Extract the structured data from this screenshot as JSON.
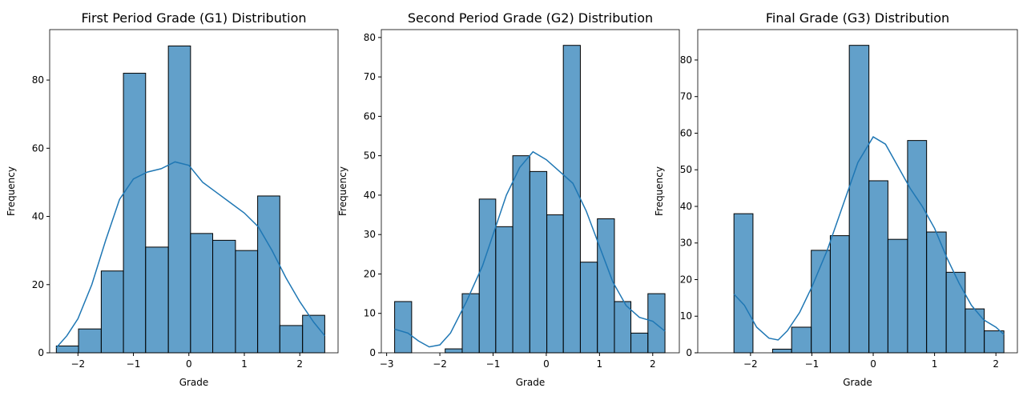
{
  "chart_data": [
    {
      "type": "histogram",
      "title": "First Period Grade (G1) Distribution",
      "x_label": "Grade",
      "y_label": "Frequency",
      "bins": [
        -2.39,
        -1.99,
        -1.58,
        -1.18,
        -0.78,
        -0.37,
        0.03,
        0.43,
        0.84,
        1.24,
        1.64,
        2.05,
        2.45
      ],
      "values": [
        2,
        7,
        24,
        82,
        31,
        90,
        35,
        33,
        30,
        46,
        8,
        11
      ],
      "color": "#1f77b4",
      "kde": {
        "x": [
          -2.39,
          -2.2,
          -2.0,
          -1.75,
          -1.5,
          -1.25,
          -1.0,
          -0.75,
          -0.5,
          -0.25,
          0,
          0.25,
          0.5,
          0.75,
          1.0,
          1.25,
          1.5,
          1.75,
          2.0,
          2.25,
          2.45
        ],
        "values": [
          1.5,
          5,
          10,
          20,
          33,
          45,
          51,
          53,
          54,
          56,
          55,
          50,
          47,
          44,
          41,
          37,
          30,
          22,
          15,
          9,
          5
        ]
      },
      "xlim": [
        -2.51,
        2.69
      ],
      "xticks": [
        {
          "value": -2,
          "label": "−2"
        },
        {
          "value": -1,
          "label": "−1"
        },
        0,
        1,
        2
      ],
      "ylim": [
        0,
        94.8
      ],
      "yticks": [
        0,
        20,
        40,
        60,
        80
      ]
    },
    {
      "type": "histogram",
      "title": "Second Period Grade (G2) Distribution",
      "x_label": "Grade",
      "y_label": "Frequency",
      "bins": [
        -2.85,
        -2.53,
        -2.22,
        -1.9,
        -1.58,
        -1.26,
        -0.95,
        -0.63,
        -0.31,
        0.01,
        0.32,
        0.64,
        0.96,
        1.28,
        1.59,
        1.91,
        2.23
      ],
      "values": [
        13,
        0,
        0,
        1,
        15,
        39,
        32,
        50,
        46,
        35,
        78,
        23,
        34,
        13,
        5,
        15
      ],
      "color": "#1f77b4",
      "kde": {
        "x": [
          -2.85,
          -2.6,
          -2.4,
          -2.2,
          -2.0,
          -1.8,
          -1.5,
          -1.2,
          -1.0,
          -0.75,
          -0.5,
          -0.25,
          0,
          0.25,
          0.5,
          0.75,
          1.0,
          1.25,
          1.5,
          1.75,
          2.0,
          2.23
        ],
        "values": [
          6,
          5,
          3,
          1.5,
          2,
          5,
          13,
          22,
          30,
          40,
          47,
          51,
          49,
          46,
          43,
          36,
          27,
          18,
          12,
          9,
          8,
          5.5
        ]
      },
      "xlim": [
        -3.1,
        2.5
      ],
      "xticks": [
        {
          "value": -3,
          "label": "−3"
        },
        {
          "value": -2,
          "label": "−2"
        },
        {
          "value": -1,
          "label": "−1"
        },
        0,
        1,
        2
      ],
      "ylim": [
        0,
        82
      ],
      "yticks": [
        0,
        10,
        20,
        30,
        40,
        50,
        60,
        70,
        80
      ]
    },
    {
      "type": "histogram",
      "title": "Final Grade (G3) Distribution",
      "x_label": "Grade",
      "y_label": "Frequency",
      "bins": [
        -2.27,
        -1.96,
        -1.64,
        -1.33,
        -1.01,
        -0.7,
        -0.39,
        -0.07,
        0.24,
        0.56,
        0.87,
        1.19,
        1.5,
        1.81,
        2.13
      ],
      "values": [
        38,
        0,
        1,
        7,
        28,
        32,
        84,
        47,
        31,
        58,
        33,
        22,
        12,
        6
      ],
      "color": "#1f77b4",
      "kde": {
        "x": [
          -2.27,
          -2.1,
          -1.9,
          -1.7,
          -1.55,
          -1.4,
          -1.2,
          -1.0,
          -0.75,
          -0.5,
          -0.25,
          0,
          0.2,
          0.4,
          0.6,
          0.8,
          1.0,
          1.2,
          1.4,
          1.6,
          1.8,
          2.0,
          2.13
        ],
        "values": [
          16,
          13,
          7,
          4,
          3.5,
          6,
          11,
          18,
          28,
          40,
          52,
          59,
          57,
          51,
          45,
          40,
          34,
          26,
          19,
          13,
          9,
          7,
          5
        ]
      },
      "xlim": [
        -2.86,
        2.35
      ],
      "xticks": [
        {
          "value": -2,
          "label": "−2"
        },
        {
          "value": -1,
          "label": "−1"
        },
        0,
        1,
        2
      ],
      "ylim": [
        0,
        88.3
      ],
      "yticks": [
        0,
        10,
        20,
        30,
        40,
        50,
        60,
        70,
        80
      ]
    }
  ]
}
